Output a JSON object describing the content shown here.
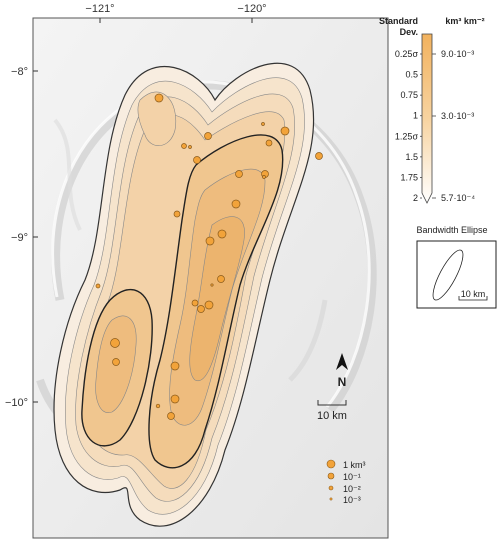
{
  "map": {
    "lon_labels": [
      "−121°",
      "−120°"
    ],
    "lat_labels": [
      "−8°",
      "−9°",
      "−10°"
    ],
    "north_label": "N",
    "scale_label": "10 km"
  },
  "colorbar": {
    "header_left": "Standard Dev.",
    "header_left_line1": "Standard",
    "header_left_line2": "Dev.",
    "header_right": "km³ km⁻²",
    "sd_labels": [
      "0.25σ",
      "0.5",
      "0.75",
      "1",
      "1.25σ",
      "1.5",
      "1.75",
      "2"
    ],
    "density_labels": [
      "9.0·10⁻³",
      "3.0·10⁻³",
      "5.7·10⁻⁴"
    ],
    "colors": {
      "top": "#f2b25e",
      "bottom": "#ffffff"
    }
  },
  "bandwidth": {
    "title": "Bandwidth Ellipse",
    "scale_label": "10 km"
  },
  "size_legend": {
    "items": [
      "1 km³",
      "10⁻¹",
      "10⁻²",
      "10⁻³"
    ],
    "color": "#f2a33a"
  },
  "vents": {
    "color": "#f2a33a",
    "size_classes": [
      "1 km³",
      "10⁻¹",
      "10⁻²",
      "10⁻³"
    ],
    "count": 37
  }
}
